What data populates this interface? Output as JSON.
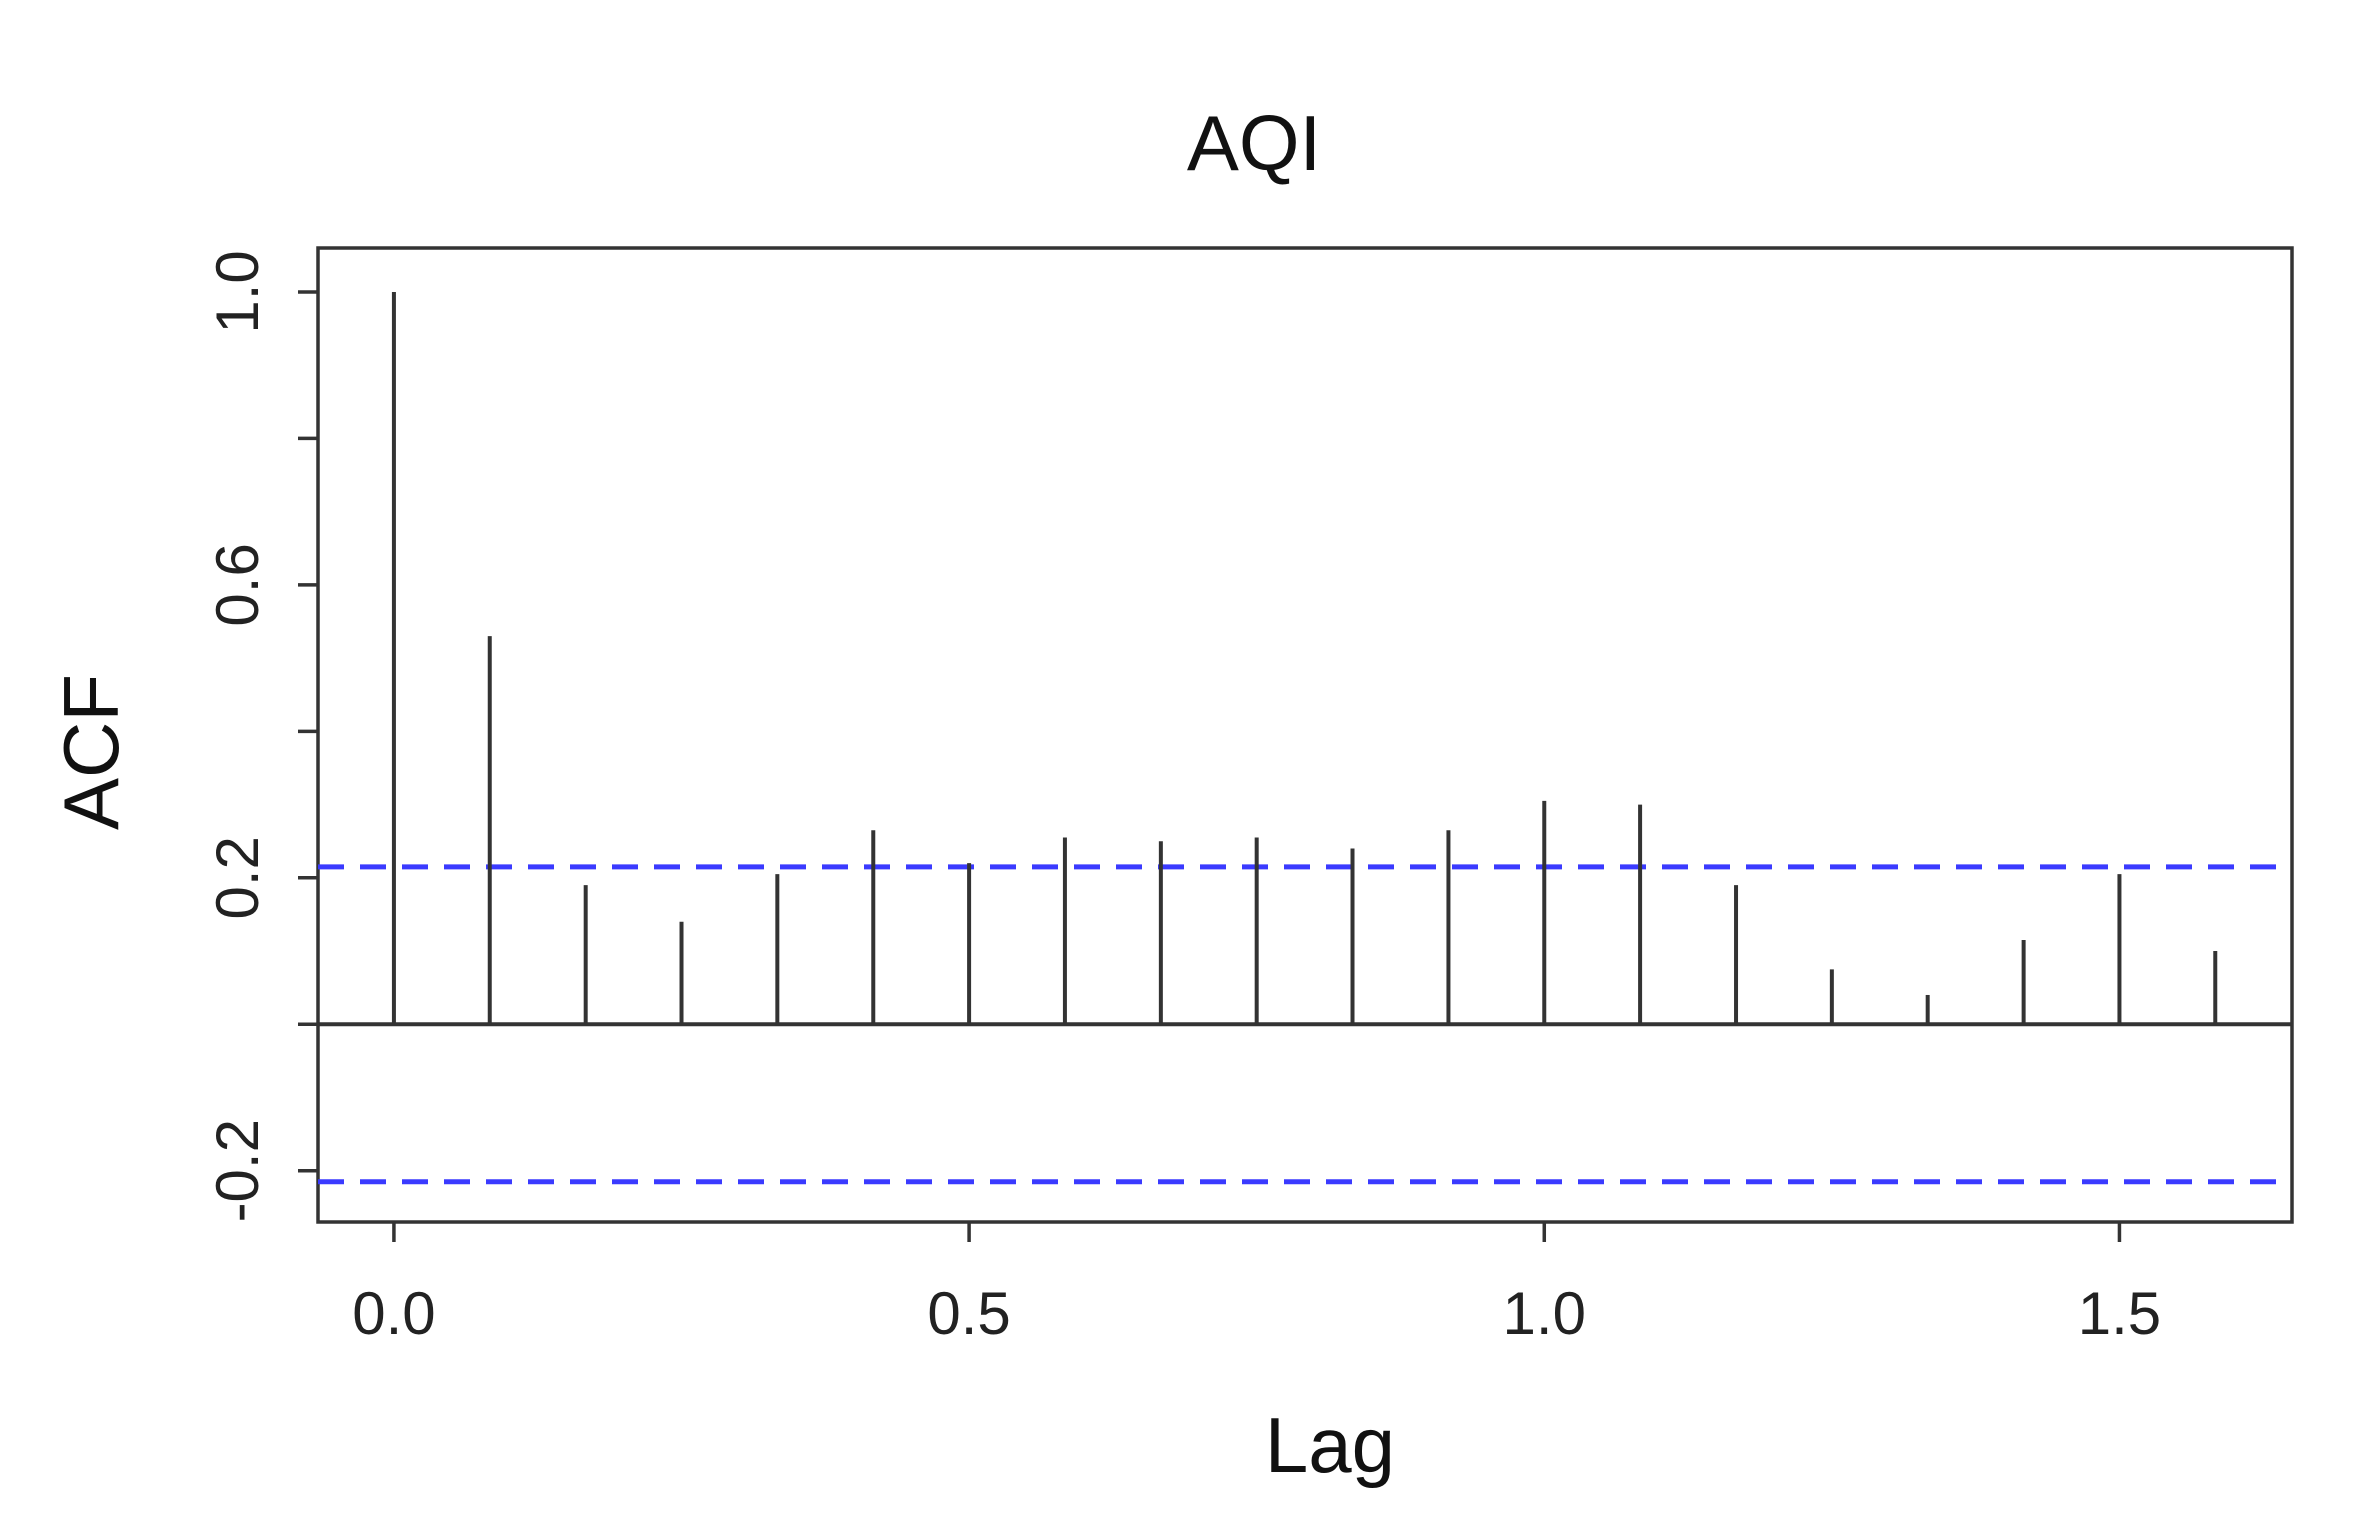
{
  "chart_data": {
    "type": "bar",
    "title": "AQI",
    "xlabel": "Lag",
    "ylabel": "ACF",
    "xlim": [
      -0.066,
      1.65
    ],
    "ylim": [
      -0.27,
      1.06
    ],
    "x_ticks": [
      {
        "value": 0.0,
        "label": "0.0"
      },
      {
        "value": 0.5,
        "label": "0.5"
      },
      {
        "value": 1.0,
        "label": "1.0"
      },
      {
        "value": 1.5,
        "label": "1.5"
      }
    ],
    "y_ticks": [
      {
        "value": -0.2,
        "label": "-0.2"
      },
      {
        "value": 0.0,
        "label": ""
      },
      {
        "value": 0.2,
        "label": "0.2"
      },
      {
        "value": 0.4,
        "label": ""
      },
      {
        "value": 0.6,
        "label": "0.6"
      },
      {
        "value": 0.8,
        "label": ""
      },
      {
        "value": 1.0,
        "label": "1.0"
      }
    ],
    "lags": [
      0.0,
      0.0833,
      0.1667,
      0.25,
      0.3333,
      0.4167,
      0.5,
      0.5833,
      0.6667,
      0.75,
      0.8333,
      0.9167,
      1.0,
      1.0833,
      1.1667,
      1.25,
      1.3333,
      1.4167,
      1.5,
      1.5833
    ],
    "acf": [
      1.0,
      0.53,
      0.19,
      0.14,
      0.205,
      0.265,
      0.22,
      0.255,
      0.25,
      0.255,
      0.24,
      0.265,
      0.305,
      0.3,
      0.19,
      0.075,
      0.04,
      0.115,
      0.205,
      0.1
    ],
    "confidence_bounds": [
      0.215,
      -0.215
    ],
    "grid": false,
    "colors": {
      "spike": "#333333",
      "confidence": "#3a3aff",
      "axis": "#333333"
    }
  }
}
